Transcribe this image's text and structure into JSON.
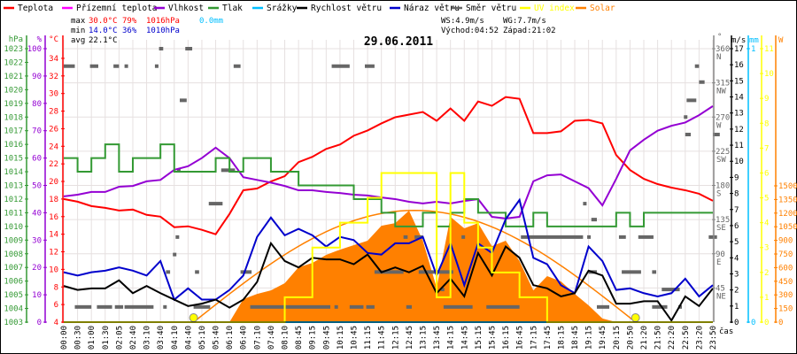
{
  "chart_data": {
    "type": "line",
    "title": "29.06.2011",
    "xlabel": "čas",
    "legend": [
      {
        "label": "Teplota",
        "color": "#ff0000"
      },
      {
        "label": "Přízemní teplota",
        "color": "#ff00ff"
      },
      {
        "label": "Vlhkost",
        "color": "#9400d3"
      },
      {
        "label": "Tlak",
        "color": "#339933"
      },
      {
        "label": "Srážky",
        "color": "#00bfff"
      },
      {
        "label": "Rychlost větru",
        "color": "#000000"
      },
      {
        "label": "Náraz větru",
        "color": "#0000cc"
      },
      {
        "label": "Směr větru",
        "color": "#666666"
      },
      {
        "label": "UV index",
        "color": "#ffff00"
      },
      {
        "label": "Solar",
        "color": "#ff8000"
      }
    ],
    "stats": {
      "max_label": "max",
      "max_temp": "30.0°C",
      "max_hum": "79%",
      "max_press": "1016hPa",
      "rain": "0.0mm",
      "min_label": "min",
      "min_temp": "14.0°C",
      "min_hum": "36%",
      "min_press": "1010hPa",
      "avg_label": "avg",
      "avg_temp": "22.1°C",
      "ws": "WS:4.9m/s",
      "wg": "WG:7.7m/s",
      "sunrise": "Východ:04:52",
      "sunset": "Západ:21:02"
    },
    "sun": {
      "sunrise": "04:52",
      "sunset": "21:02",
      "clear_sky_peak_w": 1230
    },
    "x_labels": [
      "00:00",
      "00:30",
      "01:00",
      "01:30",
      "02:05",
      "02:40",
      "03:10",
      "03:40",
      "04:10",
      "04:40",
      "05:10",
      "05:40",
      "06:10",
      "06:40",
      "07:10",
      "07:40",
      "08:10",
      "08:45",
      "09:15",
      "09:45",
      "10:15",
      "10:45",
      "11:15",
      "11:45",
      "12:15",
      "12:45",
      "13:15",
      "13:45",
      "14:15",
      "14:45",
      "15:15",
      "15:45",
      "16:15",
      "16:45",
      "17:15",
      "17:45",
      "18:15",
      "18:45",
      "19:15",
      "19:45",
      "20:15",
      "20:50",
      "21:20",
      "21:50",
      "22:20",
      "22:50",
      "23:20",
      "23:50"
    ],
    "axes": {
      "pressure": {
        "unit": "hPa",
        "range": [
          1003,
          1023
        ],
        "ticks": [
          1003,
          1004,
          1005,
          1006,
          1007,
          1008,
          1009,
          1010,
          1011,
          1012,
          1013,
          1014,
          1015,
          1016,
          1017,
          1018,
          1019,
          1020,
          1021,
          1022,
          1023
        ]
      },
      "humidity": {
        "unit": "%",
        "range": [
          0,
          100
        ],
        "ticks": [
          0,
          10,
          20,
          30,
          40,
          50,
          60,
          70,
          80,
          90,
          100
        ]
      },
      "temperature": {
        "unit": "°C",
        "range": [
          4,
          35.1
        ],
        "ticks": [
          4,
          6,
          8,
          10,
          12,
          14,
          16,
          18,
          20,
          22,
          24,
          26,
          28,
          30,
          32,
          34
        ]
      },
      "direction": {
        "unit": "°",
        "range": [
          0,
          360
        ],
        "ticks": [
          {
            "v": 45,
            "c": "NE"
          },
          {
            "v": 90,
            "c": "E"
          },
          {
            "v": 135,
            "c": "SE"
          },
          {
            "v": 180,
            "c": "S"
          },
          {
            "v": 225,
            "c": "SW"
          },
          {
            "v": 270,
            "c": "W"
          },
          {
            "v": 315,
            "c": "NW"
          },
          {
            "v": 360,
            "c": "N"
          }
        ]
      },
      "wind": {
        "unit": "m/s",
        "range": [
          0,
          17
        ],
        "ticks": [
          0,
          1,
          2,
          3,
          4,
          5,
          6,
          7,
          8,
          9,
          10,
          11,
          12,
          13,
          14,
          15,
          16,
          17
        ]
      },
      "rain": {
        "unit": "mm",
        "range": [
          0,
          1
        ],
        "ticks": [
          0,
          1
        ]
      },
      "uv": {
        "unit": "",
        "range": [
          0,
          11
        ],
        "ticks": [
          0,
          1,
          2,
          3,
          4,
          5,
          6,
          7,
          8,
          9,
          10,
          11
        ]
      },
      "solar": {
        "unit": "W",
        "range": [
          0,
          3010
        ],
        "ticks": [
          0,
          150,
          300,
          450,
          600,
          750,
          900,
          1050,
          1200,
          1350,
          1500
        ]
      }
    },
    "series": [
      {
        "name": "Teplota",
        "axis": "temperature",
        "color": "#ff0000",
        "values": [
          18.0,
          17.7,
          17.2,
          17.0,
          16.7,
          16.8,
          16.2,
          16.0,
          14.8,
          14.9,
          14.5,
          14.0,
          16.3,
          19.0,
          19.2,
          20.0,
          20.6,
          22.2,
          22.8,
          23.7,
          24.2,
          25.2,
          25.8,
          26.6,
          27.3,
          27.6,
          27.9,
          26.9,
          28.3,
          26.9,
          29.1,
          28.6,
          29.6,
          29.4,
          25.5,
          25.5,
          25.7,
          26.9,
          27.0,
          26.6,
          23.0,
          21.3,
          20.3,
          19.7,
          19.3,
          19.0,
          18.6,
          17.8
        ]
      },
      {
        "name": "Vlhkost",
        "axis": "humidity",
        "color": "#9400d3",
        "values": [
          46,
          46.6,
          47.6,
          47.6,
          49.5,
          49.8,
          51.5,
          52,
          55.7,
          57,
          60,
          63.8,
          60,
          53,
          52,
          51,
          49.8,
          48.2,
          48.2,
          47.6,
          47.2,
          46.6,
          46.3,
          45.6,
          45,
          44,
          43.4,
          44,
          43.4,
          44.3,
          45,
          38.5,
          37.9,
          38.5,
          51.5,
          53.7,
          54,
          51.5,
          49,
          42.7,
          52.4,
          62.8,
          66.7,
          70,
          71.8,
          73,
          75.7,
          79
        ]
      },
      {
        "name": "Tlak",
        "axis": "pressure",
        "color": "#339933",
        "step": true,
        "values": [
          1015,
          1014,
          1015,
          1016,
          1014,
          1015,
          1015,
          1016,
          1014,
          1014,
          1014,
          1015,
          1014,
          1015,
          1015,
          1014,
          1014,
          1013,
          1013,
          1013,
          1013,
          1012,
          1012,
          1011,
          1010,
          1010,
          1011,
          1010,
          1011,
          1012,
          1011,
          1011,
          1010,
          1010,
          1011,
          1010,
          1010,
          1010,
          1010,
          1010,
          1011,
          1010,
          1011,
          1011,
          1011,
          1011,
          1011,
          1011
        ]
      },
      {
        "name": "Srážky",
        "axis": "rain",
        "color": "#00bfff",
        "values": [
          0,
          0,
          0,
          0,
          0,
          0,
          0,
          0,
          0,
          0,
          0,
          0,
          0,
          0,
          0,
          0,
          0,
          0,
          0,
          0,
          0,
          0,
          0,
          0,
          0,
          0,
          0,
          0,
          0,
          0,
          0,
          0,
          0,
          0,
          0,
          0,
          0,
          0,
          0,
          0,
          0,
          0,
          0,
          0,
          0,
          0,
          0,
          0
        ]
      },
      {
        "name": "Náraz větru",
        "axis": "wind",
        "color": "#0000cc",
        "values": [
          3.1,
          2.9,
          3.1,
          3.2,
          3.4,
          3.2,
          2.9,
          3.8,
          1.4,
          2.1,
          1.4,
          1.4,
          2.0,
          2.9,
          5.3,
          6.5,
          5.4,
          5.8,
          5.4,
          4.7,
          5.3,
          5.1,
          4.3,
          4.2,
          4.9,
          4.9,
          5.3,
          2.9,
          4.9,
          2.3,
          4.9,
          4.3,
          6.4,
          7.6,
          4.0,
          3.6,
          2.3,
          1.8,
          4.7,
          3.8,
          2.0,
          2.1,
          1.8,
          1.6,
          1.8,
          2.7,
          1.6,
          2.3
        ]
      },
      {
        "name": "Rychlost větru",
        "axis": "wind",
        "color": "#000000",
        "values": [
          2.25,
          2.0,
          2.1,
          2.1,
          2.6,
          1.8,
          2.25,
          1.8,
          1.4,
          1.0,
          1.15,
          1.4,
          0.9,
          1.4,
          2.5,
          4.9,
          3.8,
          3.4,
          4.0,
          3.9,
          3.9,
          3.6,
          4.2,
          3.1,
          3.4,
          3.1,
          3.5,
          1.8,
          2.7,
          1.6,
          4.3,
          2.9,
          4.7,
          4.0,
          2.3,
          2.1,
          1.6,
          1.8,
          3.2,
          2.9,
          1.15,
          1.15,
          1.3,
          1.3,
          0.1,
          1.6,
          1.0,
          2.1
        ]
      },
      {
        "name": "UV index",
        "axis": "uv",
        "color": "#ffff00",
        "step": true,
        "values": [
          0,
          0,
          0,
          0,
          0,
          0,
          0,
          0,
          0,
          0,
          0,
          0,
          0,
          0,
          0,
          0,
          1,
          1,
          3,
          3,
          4,
          4,
          5,
          6,
          6,
          6,
          6,
          1,
          6,
          4,
          3,
          2,
          2,
          1,
          1,
          0,
          0,
          0,
          0,
          0,
          0,
          0,
          0,
          0,
          0,
          0,
          0,
          0
        ]
      },
      {
        "name": "Solar",
        "axis": "solar",
        "color": "#ff8000",
        "area": true,
        "values": [
          0,
          0,
          0,
          0,
          0,
          0,
          0,
          0,
          0,
          0,
          0,
          0,
          0,
          253,
          311,
          350,
          428,
          604,
          652,
          740,
          798,
          847,
          896,
          1061,
          1090,
          1227,
          896,
          380,
          1159,
          1032,
          1090,
          837,
          896,
          672,
          350,
          506,
          448,
          311,
          185,
          40,
          0,
          0,
          0,
          0,
          0,
          0,
          0,
          0
        ]
      }
    ],
    "wind_direction_segments": [
      [
        0,
        0.8,
        337
      ],
      [
        1.9,
        2.5,
        337
      ],
      [
        3.6,
        4,
        337
      ],
      [
        4.4,
        4.5,
        337
      ],
      [
        6.6,
        6.7,
        337
      ],
      [
        12.3,
        12.8,
        337
      ],
      [
        6.9,
        7.2,
        360
      ],
      [
        8.8,
        9.3,
        360
      ],
      [
        8.4,
        8.9,
        292
      ],
      [
        8.2,
        8.3,
        200
      ],
      [
        11.4,
        12.4,
        200
      ],
      [
        10.5,
        11.5,
        156
      ],
      [
        8.1,
        8.2,
        112
      ],
      [
        7.9,
        8.1,
        89
      ],
      [
        7.4,
        7.7,
        66
      ],
      [
        9.5,
        9.8,
        66
      ],
      [
        12.8,
        13.6,
        66
      ],
      [
        0.8,
        2,
        20
      ],
      [
        2.4,
        3.5,
        20
      ],
      [
        3.7,
        4.3,
        20
      ],
      [
        4.4,
        6.5,
        20
      ],
      [
        7.2,
        7.4,
        20
      ],
      [
        9.4,
        10.6,
        20
      ],
      [
        13.5,
        19.3,
        20
      ],
      [
        19.4,
        20.7,
        337
      ],
      [
        21.8,
        22.5,
        337
      ],
      [
        19.6,
        19.7,
        20
      ],
      [
        20.7,
        21.7,
        20
      ],
      [
        21.9,
        22.5,
        20
      ],
      [
        24.8,
        25.2,
        20
      ],
      [
        27.5,
        29.6,
        20
      ],
      [
        24.6,
        24.9,
        112
      ],
      [
        25.4,
        26,
        112
      ],
      [
        22.5,
        24.6,
        66
      ],
      [
        25.7,
        28.2,
        66
      ],
      [
        27.3,
        27.4,
        43
      ],
      [
        28.8,
        29,
        112
      ],
      [
        30.6,
        33,
        20
      ],
      [
        33.1,
        37.6,
        112
      ],
      [
        37.9,
        38.1,
        112
      ],
      [
        40.2,
        40.7,
        112
      ],
      [
        41.6,
        42.7,
        112
      ],
      [
        46.7,
        47.3,
        112
      ],
      [
        37.6,
        37.8,
        156
      ],
      [
        38.2,
        38.6,
        135
      ],
      [
        38,
        38.6,
        66
      ],
      [
        40.4,
        41.8,
        66
      ],
      [
        42.6,
        42.9,
        66
      ],
      [
        43.3,
        44.6,
        43
      ],
      [
        38.6,
        39.5,
        20
      ],
      [
        42.6,
        43.7,
        20
      ],
      [
        44.5,
        44.7,
        20
      ],
      [
        45.7,
        46,
        337
      ],
      [
        46,
        46.4,
        316
      ],
      [
        45.1,
        45.8,
        292
      ],
      [
        44.9,
        45.1,
        270
      ],
      [
        45,
        45.4,
        247
      ],
      [
        47,
        47.5,
        247
      ]
    ]
  }
}
